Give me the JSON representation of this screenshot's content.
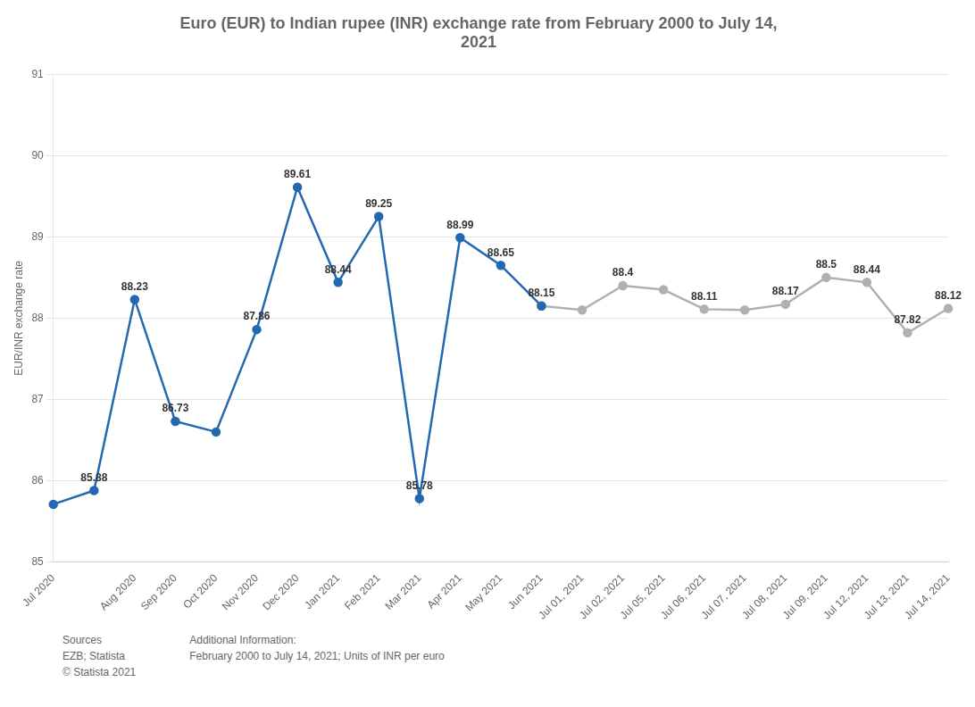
{
  "chart_data": {
    "type": "line",
    "title": "Euro (EUR) to Indian rupee (INR) exchange rate from February 2000 to July 14,\n2021",
    "y_label": "EUR/INR exchange rate",
    "categories": [
      "Jul 2020",
      null,
      "Aug 2020",
      "Sep 2020",
      "Oct 2020",
      "Nov 2020",
      "Dec 2020",
      "Jan 2021",
      "Feb 2021",
      "Mar 2021",
      "Apr 2021",
      "May 2021",
      "Jun 2021",
      "Jul 01, 2021",
      "Jul 02, 2021",
      "Jul 05, 2021",
      "Jul 06, 2021",
      "Jul 07, 2021",
      "Jul 08, 2021",
      "Jul 09, 2021",
      "Jul 12, 2021",
      "Jul 13, 2021",
      "Jul 14, 2021"
    ],
    "series": [
      {
        "color": "#2368b0",
        "marker": "circle",
        "line_style": "solid",
        "values": [
          85.71,
          85.88,
          88.23,
          86.73,
          86.6,
          87.86,
          89.61,
          88.44,
          89.25,
          85.78,
          88.99,
          88.65,
          88.15,
          null,
          null,
          null,
          null,
          null,
          null,
          null,
          null,
          null,
          null
        ],
        "value_labels": [
          null,
          "85.88",
          "88.23",
          "86.73",
          null,
          "87.86",
          "89.61",
          "88.44",
          "89.25",
          "85.78",
          "88.99",
          "88.65",
          "88.15",
          null,
          null,
          null,
          null,
          null,
          null,
          null,
          null,
          null,
          null
        ]
      },
      {
        "color": "#b0b0b0",
        "marker": "circle",
        "line_style": "solid",
        "values": [
          null,
          null,
          null,
          null,
          null,
          null,
          null,
          null,
          null,
          null,
          null,
          null,
          88.15,
          88.1,
          88.4,
          88.35,
          88.11,
          88.1,
          88.17,
          88.5,
          88.44,
          87.82,
          88.12
        ],
        "value_labels": [
          null,
          null,
          null,
          null,
          null,
          null,
          null,
          null,
          null,
          null,
          null,
          null,
          null,
          null,
          "88.4",
          null,
          "88.11",
          null,
          "88.17",
          "88.5",
          "88.44",
          "87.82",
          "88.12"
        ]
      }
    ],
    "ylim": [
      85,
      91
    ],
    "yticks": [
      85,
      86,
      87,
      88,
      89,
      90,
      91
    ],
    "grid": true,
    "annotations": [
      "Sources\nEZB; Statista\n© Statista 2021",
      "Additional Information:\nFebruary 2000 to July 14, 2021; Units of INR per euro"
    ]
  }
}
